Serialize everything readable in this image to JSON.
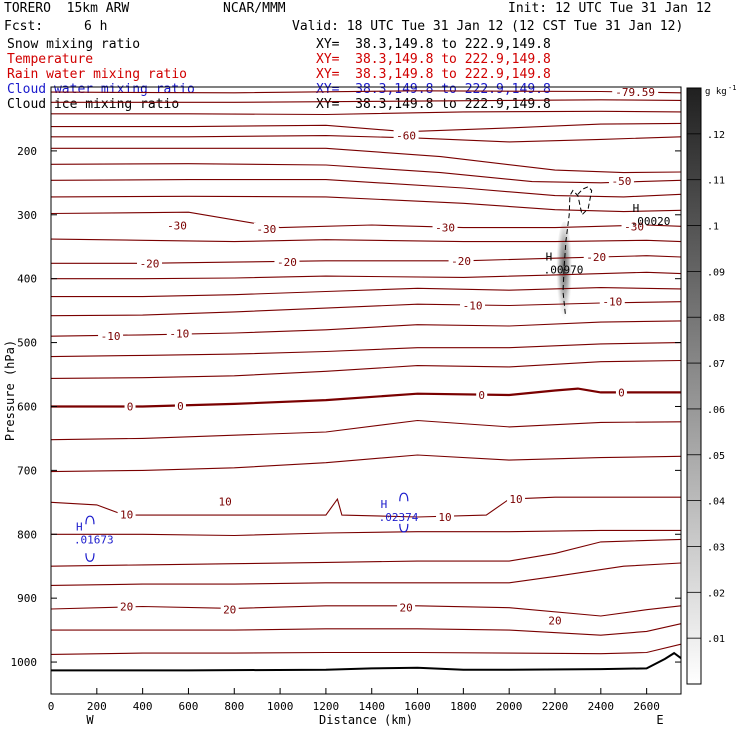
{
  "header": {
    "model": "TORERO  15km ARW",
    "org": "NCAR/MMM",
    "init": "Init: 12 UTC Tue 31 Jan 12",
    "fcst_label": "Fcst:",
    "fcst_value": "6 h",
    "valid": "Valid: 18 UTC Tue 31 Jan 12 (12 CST Tue 31 Jan 12)"
  },
  "fields": [
    {
      "name": "Snow mixing ratio",
      "xy": "XY=  38.3,149.8 to 222.9,149.8",
      "color": "#000000"
    },
    {
      "name": "Temperature",
      "xy": "XY=  38.3,149.8 to 222.9,149.8",
      "color": "#d10000"
    },
    {
      "name": "Rain water mixing ratio",
      "xy": "XY=  38.3,149.8 to 222.9,149.8",
      "color": "#d10000"
    },
    {
      "name": "Cloud water mixing ratio",
      "xy": "XY=  38.3,149.8 to 222.9,149.8",
      "color": "#1a1acc"
    },
    {
      "name": "Cloud ice mixing ratio",
      "xy": "XY=  38.3,149.8 to 222.9,149.8",
      "color": "#000000"
    }
  ],
  "chart_data": {
    "type": "cross-section",
    "xlabel": "Distance (km)",
    "ylabel": "Pressure (hPa)",
    "xlim": [
      0,
      2750
    ],
    "ylim": [
      100,
      1050
    ],
    "x_ticks": [
      0,
      200,
      400,
      600,
      800,
      1000,
      1200,
      1400,
      1600,
      1800,
      2000,
      2200,
      2400,
      2600
    ],
    "y_ticks": [
      200,
      300,
      400,
      500,
      600,
      700,
      800,
      900,
      1000
    ],
    "endpoint_labels": {
      "left": "W",
      "right": "E"
    },
    "temperature_labels": [
      {
        "text": "-79.59",
        "x": 2550,
        "p": 108
      },
      {
        "text": "-60",
        "x": 1550,
        "p": 176
      },
      {
        "text": "-50",
        "x": 2490,
        "p": 247
      },
      {
        "text": "-30",
        "x": 550,
        "p": 317
      },
      {
        "text": "-30",
        "x": 940,
        "p": 322
      },
      {
        "text": "-30",
        "x": 1720,
        "p": 320
      },
      {
        "text": "-30",
        "x": 2545,
        "p": 318
      },
      {
        "text": "-20",
        "x": 430,
        "p": 376
      },
      {
        "text": "-20",
        "x": 1030,
        "p": 374
      },
      {
        "text": "-20",
        "x": 1790,
        "p": 372
      },
      {
        "text": "-20",
        "x": 2380,
        "p": 366
      },
      {
        "text": "-10",
        "x": 260,
        "p": 490
      },
      {
        "text": "-10",
        "x": 560,
        "p": 486
      },
      {
        "text": "-10",
        "x": 1840,
        "p": 442
      },
      {
        "text": "-10",
        "x": 2450,
        "p": 436
      },
      {
        "text": "0",
        "x": 345,
        "p": 600
      },
      {
        "text": "0",
        "x": 565,
        "p": 599
      },
      {
        "text": "0",
        "x": 1880,
        "p": 582
      },
      {
        "text": "0",
        "x": 2490,
        "p": 578
      },
      {
        "text": "10",
        "x": 760,
        "p": 749
      },
      {
        "text": "10",
        "x": 330,
        "p": 769
      },
      {
        "text": "10",
        "x": 1720,
        "p": 773
      },
      {
        "text": "10",
        "x": 2030,
        "p": 745
      },
      {
        "text": "20",
        "x": 330,
        "p": 913
      },
      {
        "text": "20",
        "x": 780,
        "p": 918
      },
      {
        "text": "20",
        "x": 1550,
        "p": 915
      },
      {
        "text": "20",
        "x": 2200,
        "p": 935
      }
    ],
    "maxima_labels": [
      {
        "text": "H",
        "value": ".00020",
        "x": 2600,
        "p": 302,
        "color": "#000000"
      },
      {
        "text": "H",
        "value": ".00970",
        "x": 2220,
        "p": 378,
        "color": "#000000"
      },
      {
        "text": "H",
        "value": ".01673",
        "x": 170,
        "p": 800,
        "color": "#1a1acc"
      },
      {
        "text": "H",
        "value": ".02374",
        "x": 1500,
        "p": 765,
        "color": "#1a1acc"
      }
    ],
    "colorbar": {
      "unit": "g kg",
      "unit_exp": "-1",
      "min": 0,
      "max": 0.13,
      "ticks": [
        0.01,
        0.02,
        0.03,
        0.04,
        0.05,
        0.06,
        0.07,
        0.08,
        0.09,
        0.1,
        0.11,
        0.12
      ],
      "tick_labels": [
        ".01",
        ".02",
        ".03",
        ".04",
        ".05",
        ".06",
        ".07",
        ".08",
        ".09",
        ".1",
        ".11",
        ".12"
      ]
    },
    "terrain_pressure": [
      [
        0,
        1013
      ],
      [
        600,
        1013
      ],
      [
        1200,
        1012
      ],
      [
        1400,
        1010
      ],
      [
        1600,
        1009
      ],
      [
        1800,
        1012
      ],
      [
        2000,
        1012
      ],
      [
        2400,
        1011
      ],
      [
        2600,
        1010
      ],
      [
        2680,
        995
      ],
      [
        2720,
        986
      ],
      [
        2750,
        994
      ]
    ],
    "temperature_isotherms": [
      [
        [
          0,
          108
        ],
        [
          800,
          109
        ],
        [
          1600,
          106
        ],
        [
          2400,
          107
        ],
        [
          2750,
          109
        ]
      ],
      [
        [
          0,
          124
        ],
        [
          800,
          124
        ],
        [
          1600,
          122
        ],
        [
          2400,
          120
        ],
        [
          2750,
          121
        ]
      ],
      [
        [
          0,
          142
        ],
        [
          600,
          142
        ],
        [
          1200,
          143
        ],
        [
          1800,
          139
        ],
        [
          2400,
          138
        ],
        [
          2750,
          139
        ]
      ],
      [
        [
          0,
          162
        ],
        [
          600,
          162
        ],
        [
          1200,
          160
        ],
        [
          1550,
          170
        ],
        [
          2000,
          164
        ],
        [
          2400,
          158
        ],
        [
          2750,
          157
        ]
      ],
      [
        [
          0,
          178
        ],
        [
          600,
          178
        ],
        [
          1200,
          176
        ],
        [
          1600,
          180
        ],
        [
          2000,
          186
        ],
        [
          2400,
          182
        ],
        [
          2750,
          178
        ]
      ],
      [
        [
          0,
          196
        ],
        [
          600,
          196
        ],
        [
          1200,
          196
        ],
        [
          1700,
          209
        ],
        [
          2200,
          230
        ],
        [
          2500,
          234
        ],
        [
          2750,
          233
        ]
      ],
      [
        [
          0,
          221
        ],
        [
          600,
          220
        ],
        [
          1200,
          222
        ],
        [
          1700,
          234
        ],
        [
          2100,
          248
        ],
        [
          2400,
          250
        ],
        [
          2750,
          246
        ]
      ],
      [
        [
          0,
          246
        ],
        [
          600,
          245
        ],
        [
          1200,
          245
        ],
        [
          1800,
          258
        ],
        [
          2200,
          270
        ],
        [
          2500,
          272
        ],
        [
          2750,
          268
        ]
      ],
      [
        [
          0,
          272
        ],
        [
          600,
          271
        ],
        [
          1200,
          272
        ],
        [
          1800,
          282
        ],
        [
          2200,
          292
        ],
        [
          2500,
          295
        ],
        [
          2750,
          293
        ]
      ],
      [
        [
          0,
          298
        ],
        [
          600,
          296
        ],
        [
          1000,
          320
        ],
        [
          1400,
          316
        ],
        [
          1800,
          320
        ],
        [
          2200,
          320
        ],
        [
          2600,
          316
        ],
        [
          2750,
          318
        ]
      ],
      [
        [
          0,
          338
        ],
        [
          400,
          340
        ],
        [
          800,
          342
        ],
        [
          1200,
          339
        ],
        [
          1800,
          342
        ],
        [
          2200,
          342
        ],
        [
          2600,
          340
        ],
        [
          2750,
          342
        ]
      ],
      [
        [
          0,
          376
        ],
        [
          400,
          376
        ],
        [
          800,
          374
        ],
        [
          1200,
          372
        ],
        [
          1800,
          372
        ],
        [
          2200,
          368
        ],
        [
          2600,
          364
        ],
        [
          2750,
          366
        ]
      ],
      [
        [
          0,
          400
        ],
        [
          400,
          400
        ],
        [
          800,
          399
        ],
        [
          1200,
          396
        ],
        [
          1800,
          398
        ],
        [
          2200,
          394
        ],
        [
          2600,
          390
        ],
        [
          2750,
          392
        ]
      ],
      [
        [
          0,
          428
        ],
        [
          400,
          428
        ],
        [
          800,
          425
        ],
        [
          1200,
          420
        ],
        [
          1600,
          415
        ],
        [
          2000,
          418
        ],
        [
          2400,
          414
        ],
        [
          2750,
          416
        ]
      ],
      [
        [
          0,
          458
        ],
        [
          400,
          457
        ],
        [
          800,
          452
        ],
        [
          1200,
          446
        ],
        [
          1600,
          440
        ],
        [
          2000,
          442
        ],
        [
          2400,
          438
        ],
        [
          2750,
          436
        ]
      ],
      [
        [
          0,
          490
        ],
        [
          400,
          488
        ],
        [
          800,
          485
        ],
        [
          1200,
          480
        ],
        [
          1600,
          472
        ],
        [
          2000,
          474
        ],
        [
          2400,
          468
        ],
        [
          2750,
          466
        ]
      ],
      [
        [
          0,
          522
        ],
        [
          400,
          520
        ],
        [
          800,
          518
        ],
        [
          1200,
          514
        ],
        [
          1600,
          508
        ],
        [
          2000,
          508
        ],
        [
          2400,
          502
        ],
        [
          2750,
          500
        ]
      ],
      [
        [
          0,
          556
        ],
        [
          400,
          555
        ],
        [
          800,
          552
        ],
        [
          1200,
          545
        ],
        [
          1600,
          536
        ],
        [
          2000,
          538
        ],
        [
          2400,
          530
        ],
        [
          2750,
          528
        ]
      ],
      [
        [
          0,
          600
        ],
        [
          400,
          600
        ],
        [
          800,
          596
        ],
        [
          1200,
          590
        ],
        [
          1600,
          580
        ],
        [
          2000,
          582
        ],
        [
          2200,
          575
        ],
        [
          2300,
          572
        ],
        [
          2400,
          578
        ],
        [
          2750,
          578
        ]
      ],
      [
        [
          0,
          652
        ],
        [
          400,
          650
        ],
        [
          800,
          645
        ],
        [
          1200,
          640
        ],
        [
          1600,
          622
        ],
        [
          2000,
          632
        ],
        [
          2400,
          625
        ],
        [
          2750,
          624
        ]
      ],
      [
        [
          0,
          702
        ],
        [
          400,
          700
        ],
        [
          800,
          696
        ],
        [
          1200,
          688
        ],
        [
          1600,
          676
        ],
        [
          2000,
          684
        ],
        [
          2400,
          680
        ],
        [
          2750,
          678
        ]
      ],
      [
        [
          0,
          750
        ],
        [
          200,
          754
        ],
        [
          320,
          770
        ],
        [
          600,
          770
        ],
        [
          1200,
          770
        ],
        [
          1250,
          745
        ],
        [
          1270,
          770
        ],
        [
          1600,
          773
        ],
        [
          1900,
          770
        ],
        [
          2000,
          745
        ],
        [
          2200,
          742
        ],
        [
          2750,
          742
        ]
      ],
      [
        [
          0,
          800
        ],
        [
          400,
          800
        ],
        [
          800,
          802
        ],
        [
          1200,
          798
        ],
        [
          1600,
          796
        ],
        [
          2000,
          796
        ],
        [
          2400,
          794
        ],
        [
          2750,
          794
        ]
      ],
      [
        [
          0,
          850
        ],
        [
          400,
          848
        ],
        [
          800,
          846
        ],
        [
          1200,
          844
        ],
        [
          1600,
          842
        ],
        [
          2000,
          842
        ],
        [
          2200,
          830
        ],
        [
          2400,
          812
        ],
        [
          2750,
          808
        ]
      ],
      [
        [
          0,
          880
        ],
        [
          400,
          878
        ],
        [
          800,
          878
        ],
        [
          1200,
          876
        ],
        [
          1600,
          876
        ],
        [
          2000,
          876
        ],
        [
          2200,
          866
        ],
        [
          2500,
          850
        ],
        [
          2750,
          845
        ]
      ],
      [
        [
          0,
          917
        ],
        [
          400,
          913
        ],
        [
          800,
          916
        ],
        [
          1200,
          912
        ],
        [
          1600,
          912
        ],
        [
          2000,
          915
        ],
        [
          2400,
          928
        ],
        [
          2600,
          918
        ],
        [
          2750,
          912
        ]
      ],
      [
        [
          0,
          950
        ],
        [
          400,
          950
        ],
        [
          800,
          950
        ],
        [
          1200,
          948
        ],
        [
          1600,
          948
        ],
        [
          2000,
          950
        ],
        [
          2400,
          958
        ],
        [
          2600,
          952
        ],
        [
          2750,
          940
        ]
      ],
      [
        [
          0,
          988
        ],
        [
          400,
          986
        ],
        [
          800,
          986
        ],
        [
          1200,
          985
        ],
        [
          1600,
          985
        ],
        [
          2000,
          986
        ],
        [
          2400,
          987
        ],
        [
          2600,
          985
        ],
        [
          2750,
          972
        ]
      ]
    ],
    "snow_contour_dashed": [
      [
        2245,
        455
      ],
      [
        2235,
        420
      ],
      [
        2240,
        380
      ],
      [
        2248,
        340
      ],
      [
        2262,
        300
      ],
      [
        2265,
        270
      ],
      [
        2278,
        262
      ],
      [
        2300,
        270
      ],
      [
        2318,
        300
      ],
      [
        2345,
        290
      ],
      [
        2360,
        262
      ],
      [
        2345,
        256
      ],
      [
        2320,
        260
      ],
      [
        2300,
        268
      ]
    ],
    "cloud_water_blobs": [
      {
        "x": 170,
        "p": 778,
        "label_side": "top"
      },
      {
        "x": 170,
        "p": 836,
        "label_side": "bottom"
      },
      {
        "x": 1540,
        "p": 742,
        "label_side": "top"
      },
      {
        "x": 1540,
        "p": 790,
        "label_side": "bottom"
      }
    ],
    "snow_shading": {
      "x": 2240,
      "p_top": 320,
      "p_bottom": 460,
      "peak_value": 0.0097
    }
  }
}
